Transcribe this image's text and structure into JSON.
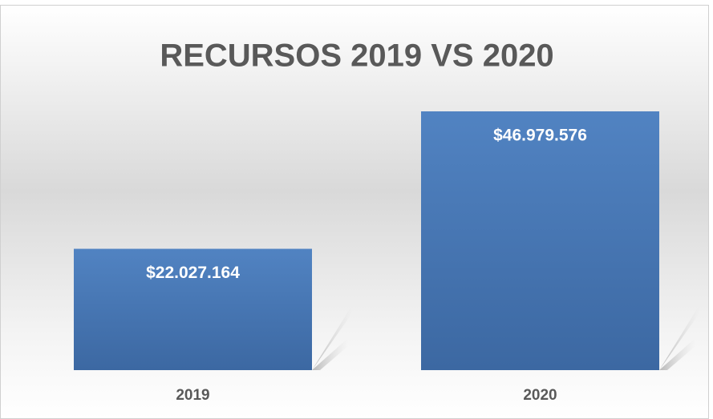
{
  "chart_data": {
    "type": "bar",
    "title": "RECURSOS 2019 VS 2020",
    "categories": [
      "2019",
      "2020"
    ],
    "values": [
      22027164,
      46979576
    ],
    "value_labels": [
      "$22.027.164",
      "$46.979.576"
    ],
    "color": "#4a7aba"
  }
}
